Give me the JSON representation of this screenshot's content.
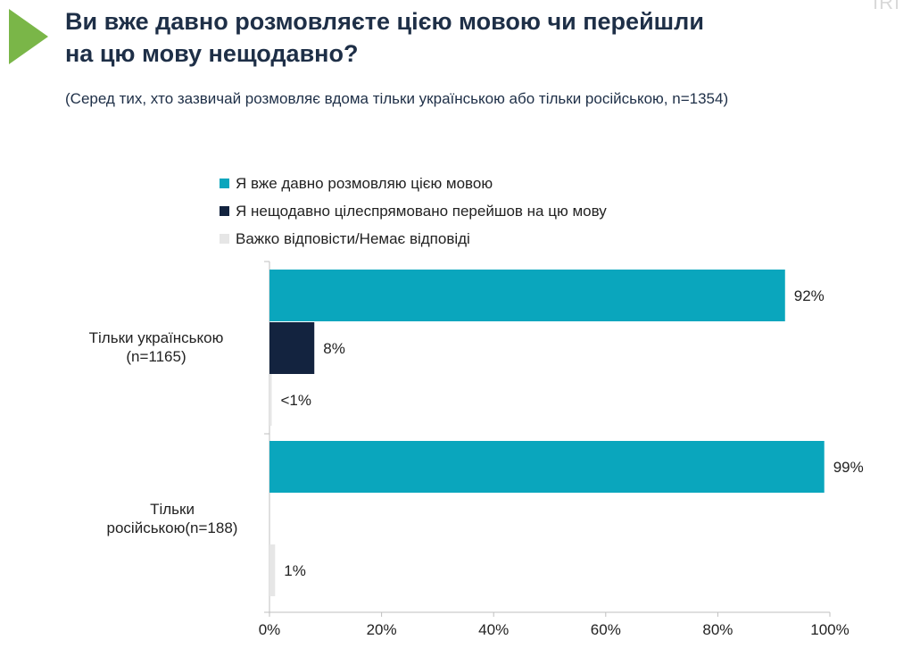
{
  "slide": {
    "title_line1": "Ви вже давно розмовляєте цією мовою чи перейшли",
    "title_line2": "на цю мову нещодавно?",
    "subtitle": "(Серед тих, хто зазвичай розмовляє вдома тільки українською або тільки російською, n=1354)",
    "watermark": "IRI",
    "accent_color": "#7ab648"
  },
  "chart_data": {
    "type": "bar",
    "orientation": "horizontal",
    "title": "Ви вже давно розмовляєте цією мовою чи перейшли на цю мову нещодавно?",
    "categories": [
      {
        "line1": "Тільки українською",
        "line2": "(n=1165)"
      },
      {
        "line1": "Тільки",
        "line2": "російською(n=188)"
      }
    ],
    "series": [
      {
        "name": "Я вже давно розмовляю цією мовою",
        "color": "#0aa6bd",
        "values": [
          92,
          99
        ],
        "labels": [
          "92%",
          "99%"
        ]
      },
      {
        "name": "Я нещодавно цілеспрямовано перейшов на цю мову",
        "color": "#13233f",
        "values": [
          8,
          0
        ],
        "labels": [
          "8%",
          ""
        ]
      },
      {
        "name": "Важко відповісти/Немає відповіді",
        "color": "#e6e6e6",
        "values": [
          0.4,
          1
        ],
        "labels": [
          "<1%",
          "1%"
        ]
      }
    ],
    "xlim": [
      0,
      100
    ],
    "xticks": [
      0,
      20,
      40,
      60,
      80,
      100
    ],
    "xtick_labels": [
      "0%",
      "20%",
      "40%",
      "60%",
      "80%",
      "100%"
    ],
    "legend_position": "top",
    "grid": false
  }
}
